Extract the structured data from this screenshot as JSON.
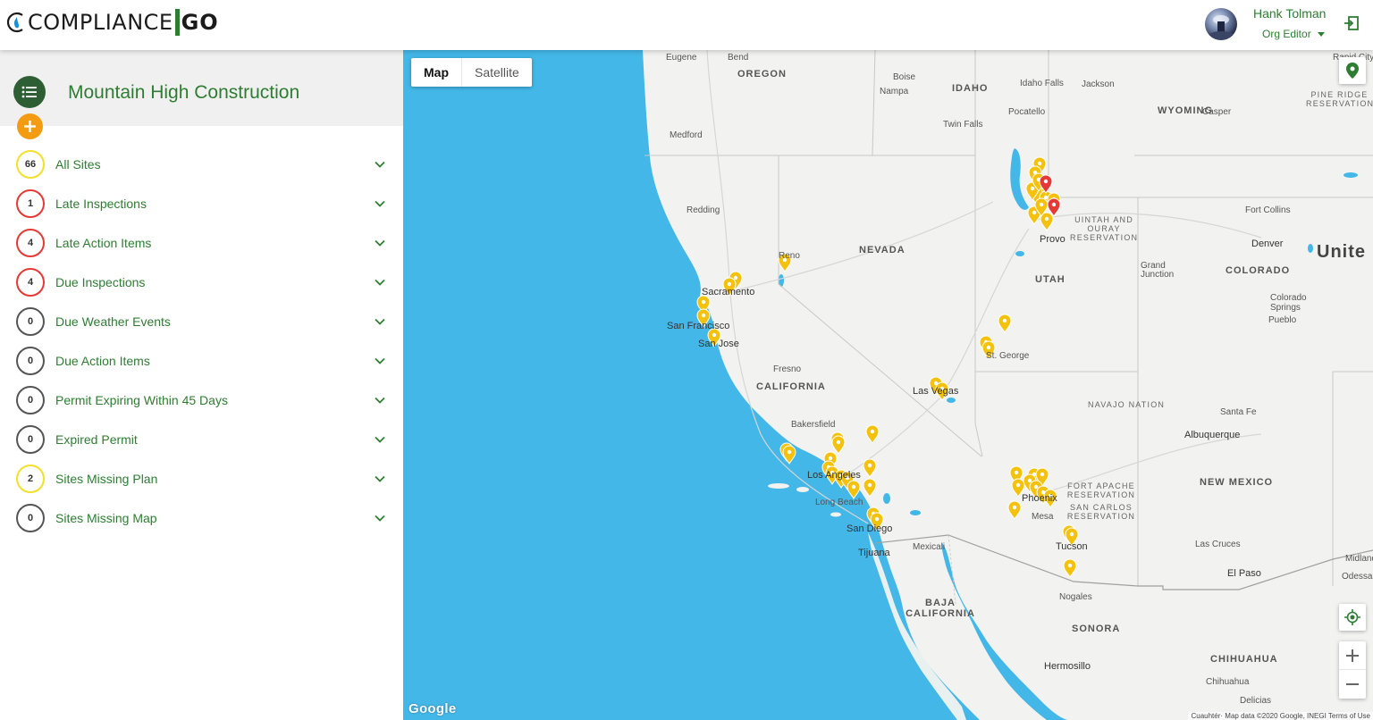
{
  "header": {
    "logo_text": "COMPLIANCE",
    "logo_suffix": "GO",
    "user_name": "Hank Tolman",
    "user_role": "Org Editor",
    "avatar_icon": "avatar-image",
    "logout_icon": "logout-icon"
  },
  "sidebar": {
    "org_name": "Mountain High Construction",
    "menu_icon": "list-icon",
    "add_icon": "plus-icon",
    "categories": [
      {
        "count": "66",
        "label": "All Sites",
        "ring": "#f1e12b"
      },
      {
        "count": "1",
        "label": "Late Inspections",
        "ring": "#e53935"
      },
      {
        "count": "4",
        "label": "Late Action Items",
        "ring": "#e53935"
      },
      {
        "count": "4",
        "label": "Due Inspections",
        "ring": "#e53935"
      },
      {
        "count": "0",
        "label": "Due Weather Events",
        "ring": "#555555"
      },
      {
        "count": "0",
        "label": "Due Action Items",
        "ring": "#555555"
      },
      {
        "count": "0",
        "label": "Permit Expiring Within 45 Days",
        "ring": "#555555"
      },
      {
        "count": "0",
        "label": "Expired Permit",
        "ring": "#555555"
      },
      {
        "count": "2",
        "label": "Sites Missing Plan",
        "ring": "#f1e12b"
      },
      {
        "count": "0",
        "label": "Sites Missing Map",
        "ring": "#555555"
      }
    ]
  },
  "map": {
    "type_options": [
      "Map",
      "Satellite"
    ],
    "selected_type": "Map",
    "google_label": "Google",
    "attribution": "Cuauhtér· Map data ©2020 Google, INEGI   Terms of Use",
    "states": [
      "OREGON",
      "IDAHO",
      "WYOMING",
      "NEVADA",
      "UTAH",
      "COLORADO",
      "CALIFORNIA",
      "NAVAJO NATION",
      "NEW MEXICO",
      "SONORA",
      "CHIHUAHUA",
      "BAJA CALIFORNIA",
      "Unite"
    ],
    "reservations": [
      "UINTAH AND OURAY RESERVATION",
      "PINE RIDGE RESERVATION",
      "FORT APACHE RESERVATION",
      "SAN CARLOS RESERVATION"
    ],
    "cities": [
      "Eugene",
      "Bend",
      "Boise",
      "Nampa",
      "Idaho Falls",
      "Jackson",
      "Rapid City",
      "Medford",
      "Twin Falls",
      "Pocatello",
      "Casper",
      "Redding",
      "Fort Collins",
      "Provo",
      "Denver",
      "Reno",
      "Grand Junction",
      "Sacramento",
      "San Francisco",
      "San Jose",
      "Colorado Springs",
      "Pueblo",
      "Fresno",
      "St. George",
      "Las Vegas",
      "Santa Fe",
      "Bakersfield",
      "Albuquerque",
      "Los Angeles",
      "Long Beach",
      "Phoenix",
      "Mesa",
      "San Diego",
      "Tijuana",
      "Mexicali",
      "Tucson",
      "Las Cruces",
      "El Paso",
      "Nogales",
      "Hermosillo",
      "Chihuahua",
      "Delicias",
      "Odessa",
      "Midland"
    ],
    "marker_color": "#f4c20d",
    "alert_marker_color": "#e53935"
  }
}
